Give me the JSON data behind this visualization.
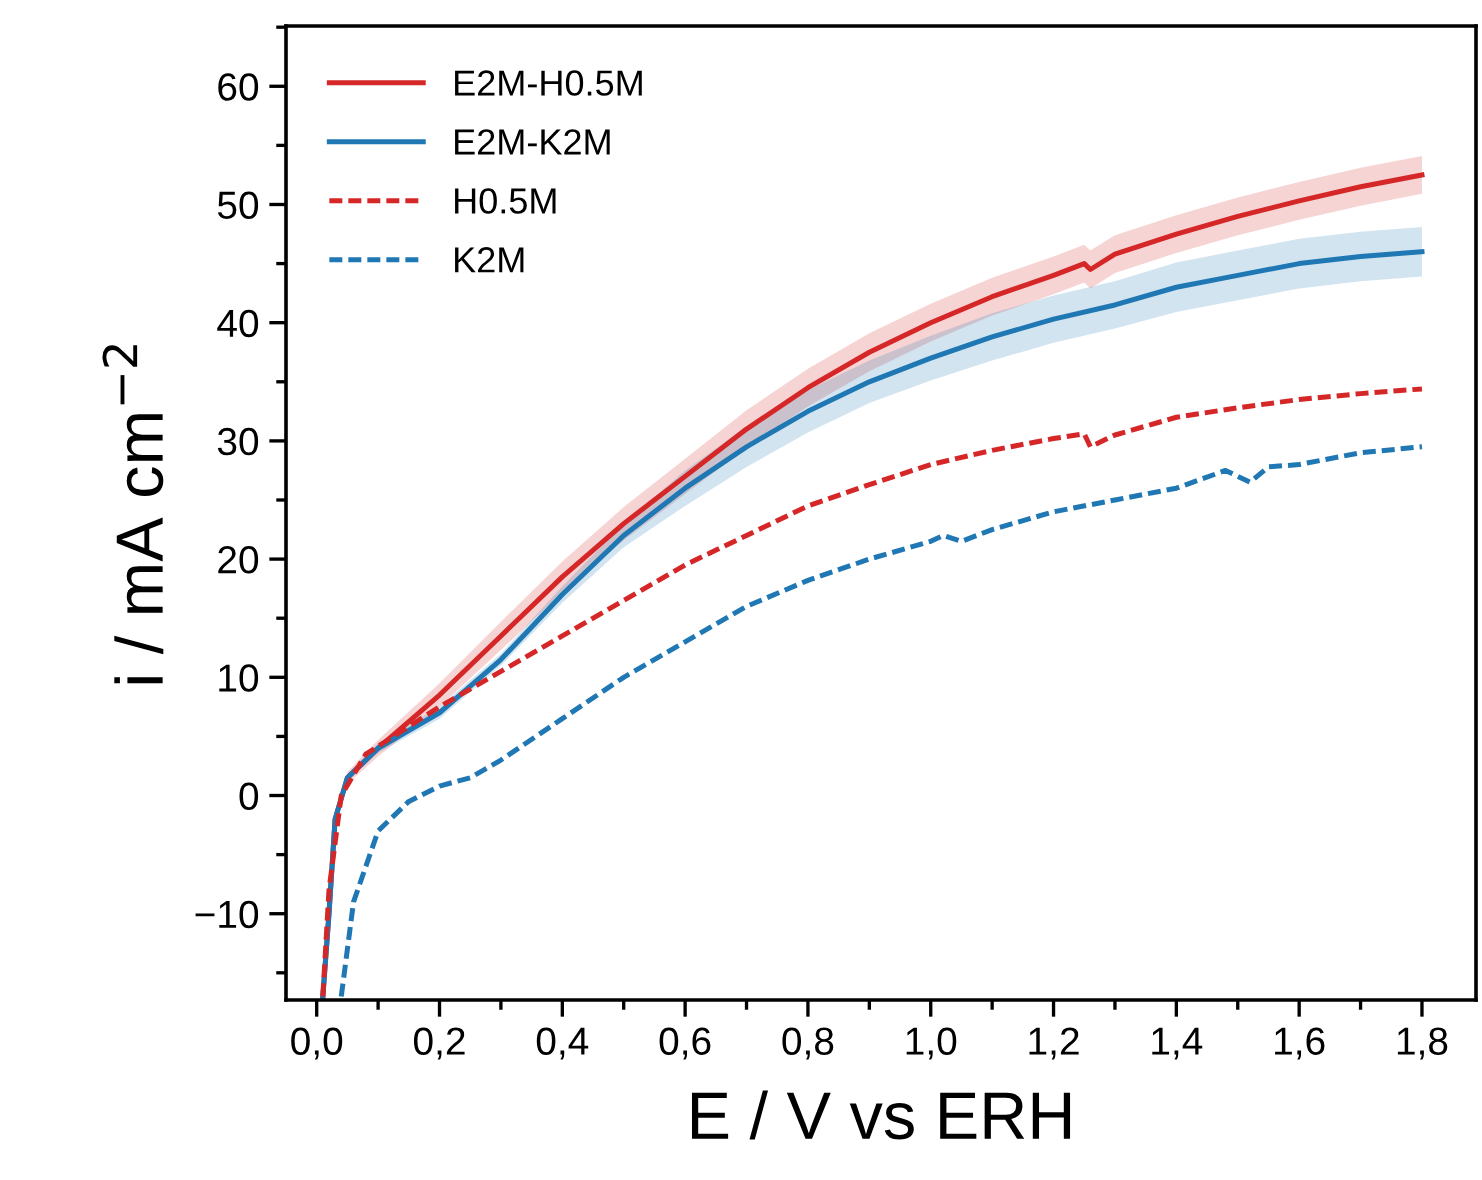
{
  "chart_data": {
    "type": "line",
    "xlabel": "E / V vs ERH",
    "ylabel": "i / mA cm$^{−2}$",
    "xlim": [
      -0.05,
      1.888
    ],
    "ylim": [
      -17.3,
      65.1
    ],
    "xticks": [
      {
        "value": 0,
        "label": "0,0"
      },
      {
        "value": 0.2,
        "label": "0,2"
      },
      {
        "value": 0.4,
        "label": "0,4"
      },
      {
        "value": 0.6,
        "label": "0,6"
      },
      {
        "value": 0.8,
        "label": "0,8"
      },
      {
        "value": 1.0,
        "label": "1,0"
      },
      {
        "value": 1.2,
        "label": "1,2"
      },
      {
        "value": 1.4,
        "label": "1,4"
      },
      {
        "value": 1.6,
        "label": "1,6"
      },
      {
        "value": 1.8,
        "label": "1,8"
      }
    ],
    "yticks": [
      {
        "value": -10,
        "label": "−10"
      },
      0,
      10,
      20,
      30,
      40,
      50,
      60
    ],
    "legend": "top left",
    "grid": false,
    "series": [
      {
        "name": "E2M-H0.5M",
        "color": "#d62728",
        "line_style": "solid",
        "x": [
          0.01,
          0.02,
          0.03,
          0.05,
          0.1,
          0.2,
          0.3,
          0.4,
          0.5,
          0.6,
          0.7,
          0.8,
          0.9,
          1.0,
          1.1,
          1.2,
          1.25,
          1.26,
          1.3,
          1.4,
          1.5,
          1.6,
          1.7,
          1.8
        ],
        "values": [
          -17,
          -10,
          -2,
          1.5,
          4,
          8.5,
          13.5,
          18.5,
          23,
          27,
          31,
          34.5,
          37.5,
          40,
          42.2,
          44,
          45,
          44.5,
          45.8,
          47.5,
          49,
          50.3,
          51.5,
          52.5
        ],
        "lower": [
          -17,
          -10,
          -2.5,
          1,
          3.3,
          7.5,
          12.3,
          17.2,
          21.6,
          25.5,
          29.4,
          32.9,
          35.9,
          38.4,
          40.6,
          42.4,
          43.4,
          42.9,
          44.2,
          45.9,
          47.4,
          48.7,
          49.9,
          50.9
        ],
        "upper": [
          -17,
          -10,
          -1.5,
          2,
          4.7,
          9.5,
          14.7,
          19.8,
          24.4,
          28.5,
          32.6,
          36.1,
          39.1,
          41.6,
          43.8,
          45.6,
          46.6,
          46.1,
          47.4,
          49.1,
          50.6,
          51.9,
          53.1,
          54.1
        ]
      },
      {
        "name": "E2M-K2M",
        "color": "#1f77b4",
        "line_style": "solid",
        "x": [
          0.01,
          0.02,
          0.03,
          0.05,
          0.1,
          0.2,
          0.3,
          0.4,
          0.5,
          0.6,
          0.7,
          0.8,
          0.9,
          1.0,
          1.1,
          1.2,
          1.3,
          1.4,
          1.5,
          1.6,
          1.7,
          1.8
        ],
        "values": [
          -17,
          -10,
          -2,
          1.5,
          4,
          7,
          11.5,
          17,
          22,
          26,
          29.5,
          32.5,
          35,
          37,
          38.8,
          40.3,
          41.5,
          43,
          44,
          45,
          45.6,
          46
        ],
        "lower": [
          -17,
          -10,
          -2.3,
          1.2,
          3.6,
          6.5,
          11,
          16.3,
          21,
          24.5,
          27.8,
          30.7,
          33.2,
          35.1,
          36.8,
          38.3,
          39.5,
          40.9,
          41.9,
          42.9,
          43.5,
          43.9
        ],
        "upper": [
          -17,
          -10,
          -1.7,
          1.8,
          4.4,
          7.5,
          12,
          17.7,
          23,
          27.5,
          31.2,
          34.3,
          36.8,
          38.9,
          40.8,
          42.3,
          43.5,
          45.1,
          46.1,
          47.1,
          47.7,
          48.1
        ]
      },
      {
        "name": "H0.5M",
        "color": "#d62728",
        "line_style": "dashed",
        "x": [
          0.01,
          0.02,
          0.04,
          0.08,
          0.2,
          0.3,
          0.4,
          0.5,
          0.6,
          0.7,
          0.8,
          0.9,
          1.0,
          1.1,
          1.2,
          1.25,
          1.26,
          1.3,
          1.4,
          1.5,
          1.6,
          1.7,
          1.8
        ],
        "values": [
          -17,
          -8,
          0,
          3.5,
          7.5,
          10.5,
          13.5,
          16.5,
          19.5,
          22,
          24.5,
          26.3,
          28,
          29.2,
          30.2,
          30.6,
          29.5,
          30.5,
          32,
          32.8,
          33.5,
          34,
          34.4
        ]
      },
      {
        "name": "K2M",
        "color": "#1f77b4",
        "line_style": "dashed",
        "x": [
          0.04,
          0.06,
          0.1,
          0.15,
          0.2,
          0.25,
          0.3,
          0.4,
          0.5,
          0.6,
          0.7,
          0.8,
          0.9,
          1.0,
          1.02,
          1.05,
          1.1,
          1.2,
          1.3,
          1.4,
          1.48,
          1.52,
          1.55,
          1.6,
          1.7,
          1.8
        ],
        "values": [
          -17,
          -9,
          -3,
          -0.5,
          0.8,
          1.5,
          3,
          6.5,
          10,
          13,
          16,
          18.2,
          20,
          21.5,
          22,
          21.5,
          22.5,
          24,
          25,
          26,
          27.5,
          26.5,
          27.8,
          28,
          29,
          29.5
        ]
      }
    ]
  }
}
